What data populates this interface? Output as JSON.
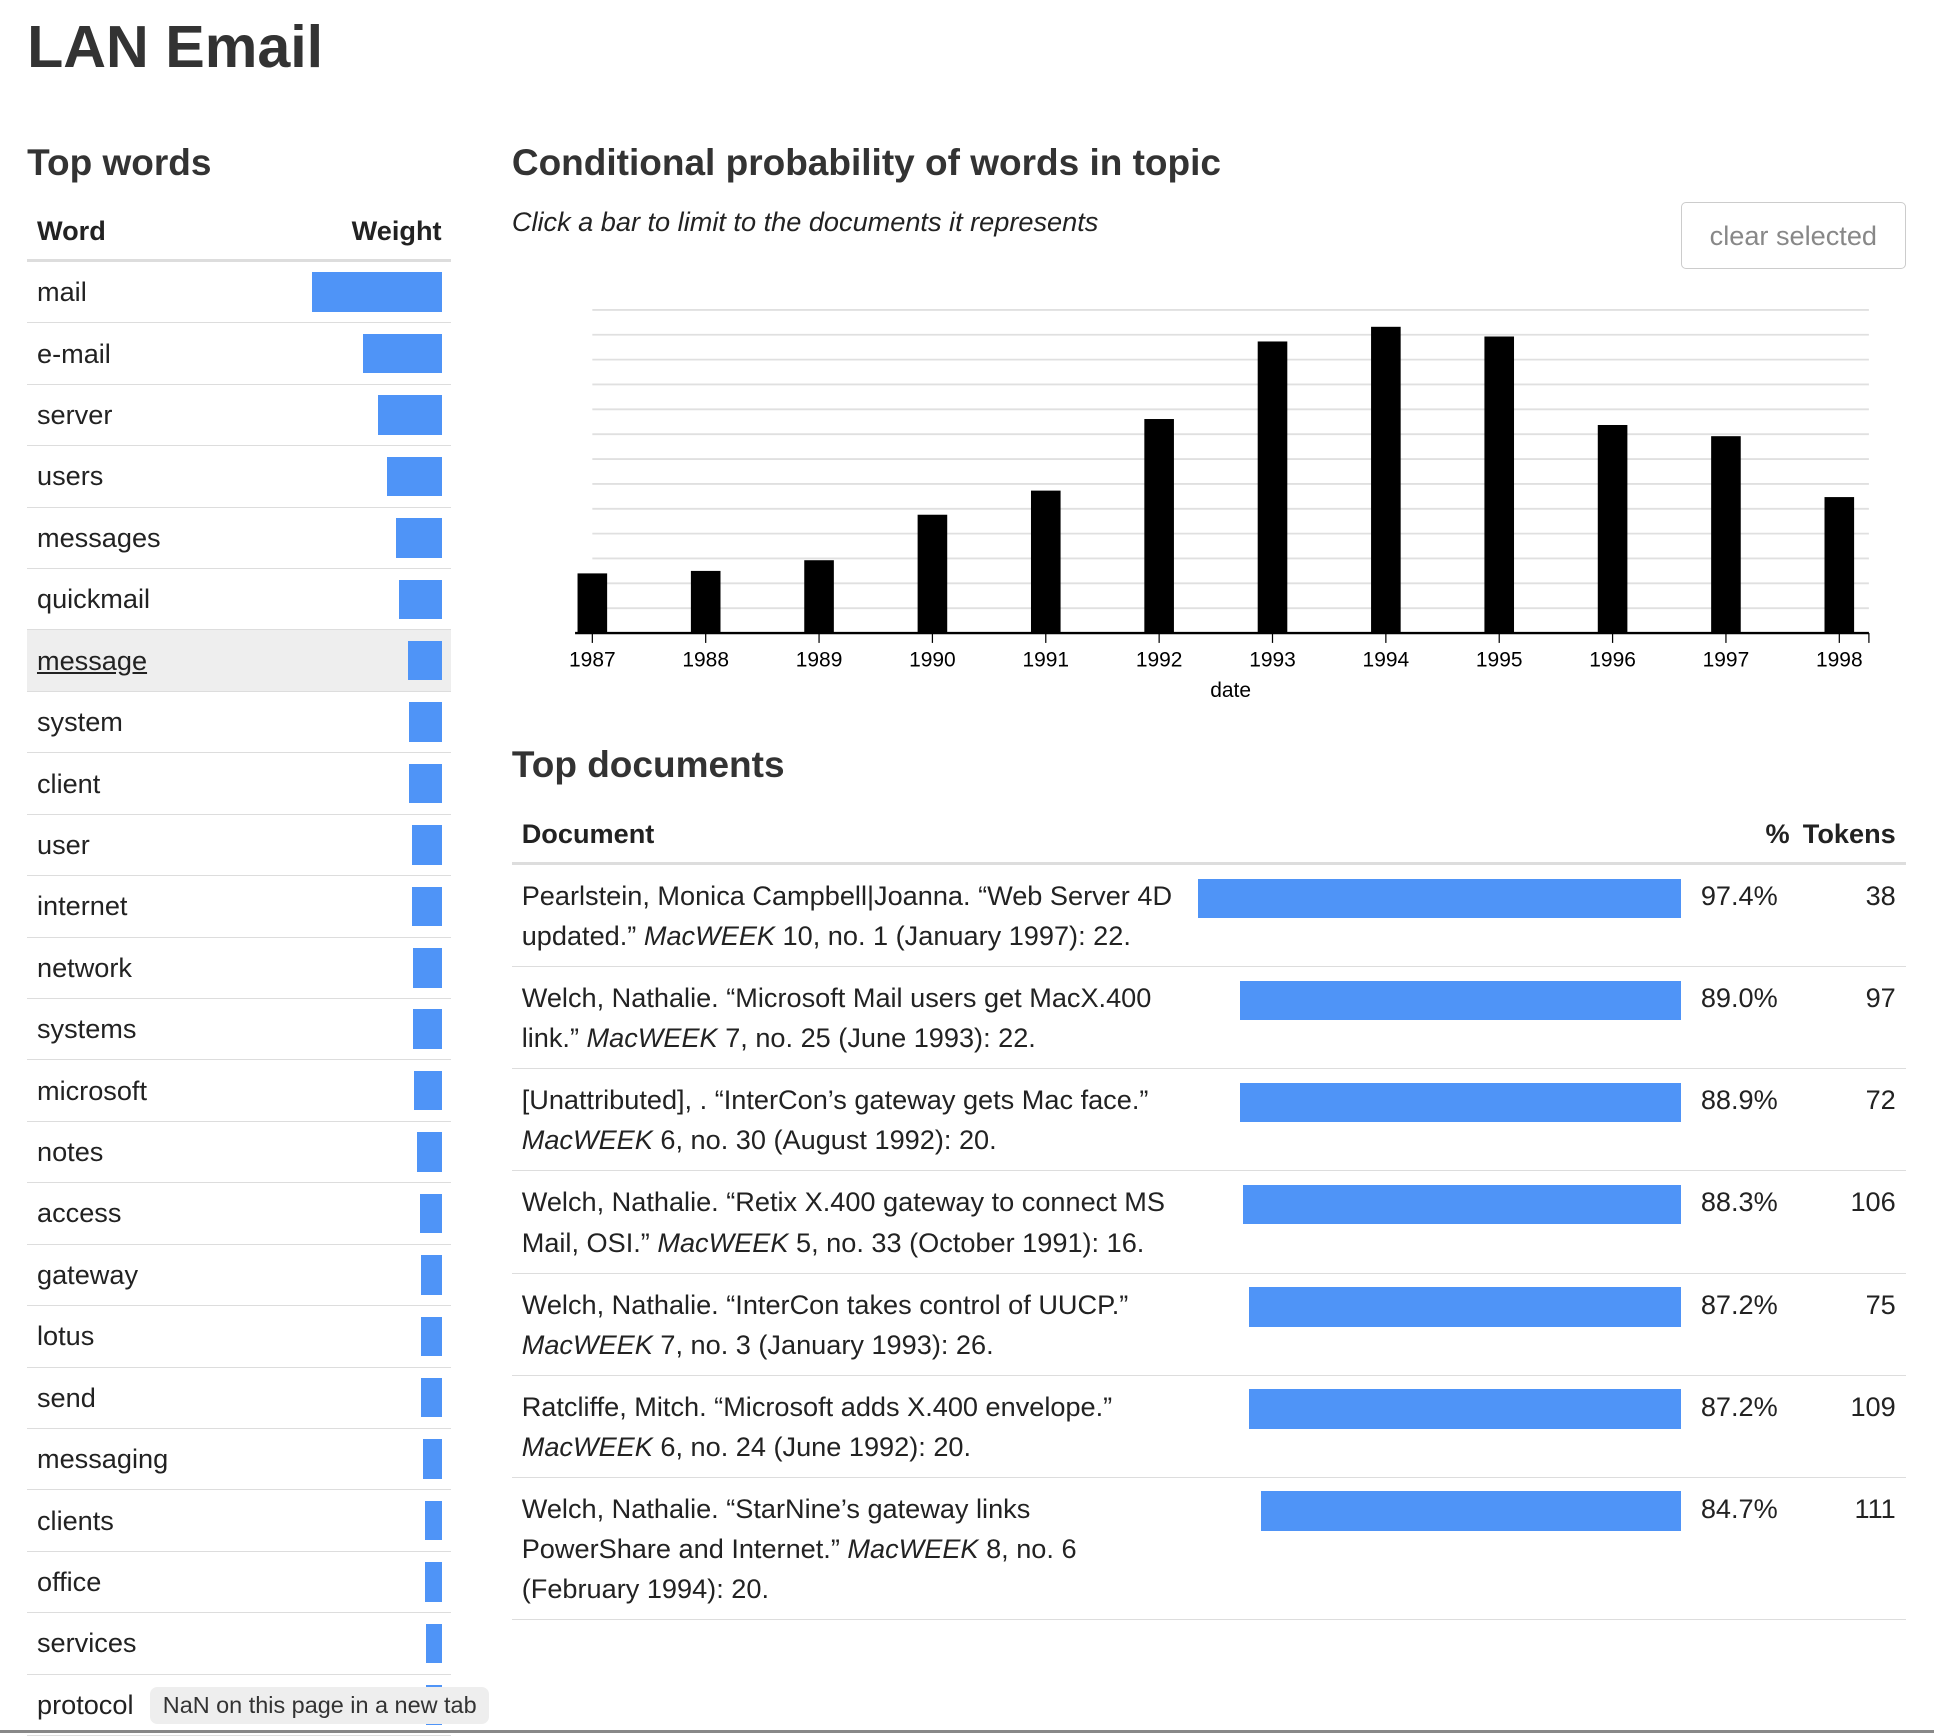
{
  "title": "LAN Email",
  "top_words": {
    "heading": "Top words",
    "col_word": "Word",
    "col_weight": "Weight",
    "highlighted": "message",
    "items": [
      {
        "word": "mail",
        "weight": 100
      },
      {
        "word": "e-mail",
        "weight": 61
      },
      {
        "word": "server",
        "weight": 49
      },
      {
        "word": "users",
        "weight": 42
      },
      {
        "word": "messages",
        "weight": 35
      },
      {
        "word": "quickmail",
        "weight": 33
      },
      {
        "word": "message",
        "weight": 26
      },
      {
        "word": "system",
        "weight": 25
      },
      {
        "word": "client",
        "weight": 25
      },
      {
        "word": "user",
        "weight": 23
      },
      {
        "word": "internet",
        "weight": 23
      },
      {
        "word": "network",
        "weight": 22
      },
      {
        "word": "systems",
        "weight": 22
      },
      {
        "word": "microsoft",
        "weight": 21
      },
      {
        "word": "notes",
        "weight": 19
      },
      {
        "word": "access",
        "weight": 17
      },
      {
        "word": "gateway",
        "weight": 16
      },
      {
        "word": "lotus",
        "weight": 16
      },
      {
        "word": "send",
        "weight": 16
      },
      {
        "word": "messaging",
        "weight": 14
      },
      {
        "word": "clients",
        "weight": 13
      },
      {
        "word": "office",
        "weight": 13
      },
      {
        "word": "services",
        "weight": 12
      },
      {
        "word": "protocol",
        "weight": 12
      }
    ]
  },
  "chart_section": {
    "heading": "Conditional probability of words in topic",
    "subtitle": "Click a bar to limit to the documents it represents",
    "clear_button": "clear selected"
  },
  "chart_data": {
    "type": "bar",
    "xlabel": "date",
    "ylabel": "",
    "grid": true,
    "categories": [
      "1987",
      "1988",
      "1989",
      "1990",
      "1991",
      "1992",
      "1993",
      "1994",
      "1995",
      "1996",
      "1997",
      "1998"
    ],
    "values": [
      2.4,
      2.5,
      2.93,
      4.76,
      5.73,
      8.61,
      11.73,
      12.32,
      11.93,
      8.37,
      7.92,
      5.47
    ],
    "ylim": [
      0,
      13
    ],
    "bar_color": "#000000"
  },
  "top_documents": {
    "heading": "Top documents",
    "col_document": "Document",
    "col_pct": "%",
    "col_tokens": "Tokens",
    "bar_color": "#4f94f7",
    "rows": [
      {
        "pre": "Pearlstein, Monica Campbell|Joanna. “Web Server 4D updated.” ",
        "journal": "MacWEEK",
        "post": " 10, no. 1 (January 1997): 22.",
        "pct": 97.4,
        "pct_label": "97.4%",
        "tokens": "38"
      },
      {
        "pre": "Welch, Nathalie. “Microsoft Mail users get MacX.400 link.” ",
        "journal": "MacWEEK",
        "post": " 7, no. 25 (June 1993): 22.",
        "pct": 89.0,
        "pct_label": "89.0%",
        "tokens": "97"
      },
      {
        "pre": "[Unattributed], . “InterCon’s gateway gets Mac face.” ",
        "journal": "MacWEEK",
        "post": " 6, no. 30 (August 1992): 20.",
        "pct": 88.9,
        "pct_label": "88.9%",
        "tokens": "72"
      },
      {
        "pre": "Welch, Nathalie. “Retix X.400 gateway to connect MS Mail, OSI.” ",
        "journal": "MacWEEK",
        "post": " 5, no. 33 (October 1991): 16.",
        "pct": 88.3,
        "pct_label": "88.3%",
        "tokens": "106"
      },
      {
        "pre": "Welch, Nathalie. “InterCon takes control of UUCP.” ",
        "journal": "MacWEEK",
        "post": " 7, no. 3 (January 1993): 26.",
        "pct": 87.2,
        "pct_label": "87.2%",
        "tokens": "75"
      },
      {
        "pre": "Ratcliffe, Mitch. “Microsoft adds X.400 envelope.” ",
        "journal": "MacWEEK",
        "post": " 6, no. 24 (June 1992): 20.",
        "pct": 87.2,
        "pct_label": "87.2%",
        "tokens": "109"
      },
      {
        "pre": "Welch, Nathalie. “StarNine’s gateway links PowerShare and Internet.” ",
        "journal": "MacWEEK",
        "post": " 8, no. 6 (February 1994): 20.",
        "pct": 84.7,
        "pct_label": "84.7%",
        "tokens": "111"
      }
    ]
  },
  "tooltip": "NaN on this page in a new tab"
}
